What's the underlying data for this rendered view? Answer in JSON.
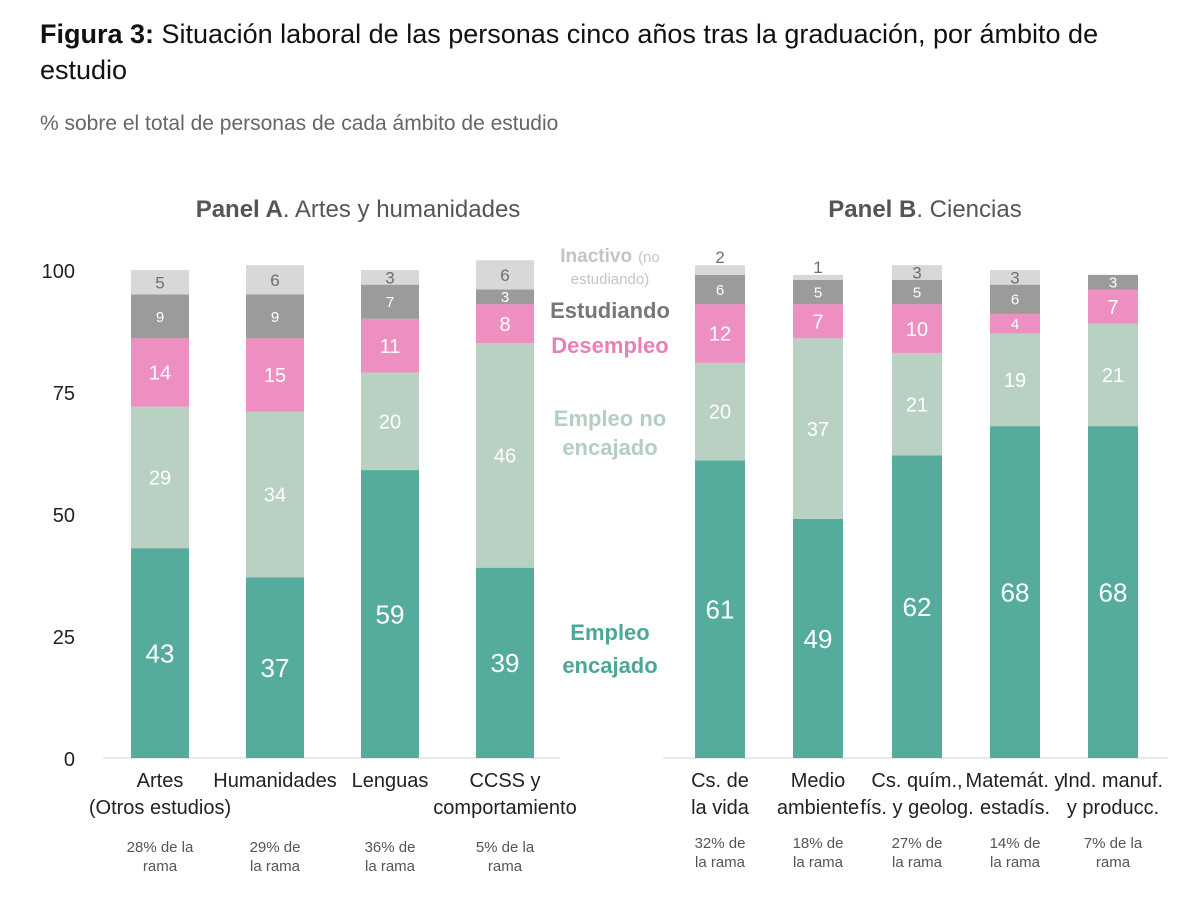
{
  "header": {
    "figure_label": "Figura 3:",
    "title": "Situación laboral de las personas cinco años tras la graduación, por ámbito de estudio",
    "subtitle": "% sobre el total de personas de cada ámbito de estudio"
  },
  "colors": {
    "empleo_encajado": "#55ab9c",
    "empleo_no_encajado": "#b9d1c2",
    "desempleo": "#ee8fc2",
    "estudiando": "#9b9b9b",
    "inactivo": "#d8d8d8",
    "legend_inactivo": "#c4c4c4",
    "legend_estudiando": "#777777",
    "legend_desempleo": "#ea7fb7",
    "legend_empleo_no_encajado": "#b3cfc0",
    "legend_empleo_encajado": "#4ea698"
  },
  "legend": {
    "inactivo_bold": "Inactivo",
    "inactivo_note_1": "(no",
    "inactivo_note_2": "estudiando)",
    "estudiando": "Estudiando",
    "desempleo": "Desempleo",
    "empleo_no_encajado_1": "Empleo no",
    "empleo_no_encajado_2": "encajado",
    "empleo_encajado_1": "Empleo",
    "empleo_encajado_2": "encajado"
  },
  "chart_data": [
    {
      "type": "bar",
      "stacked": true,
      "title_bold": "Panel A",
      "title_rest": ". Artes y humanidades",
      "ylim": [
        0,
        100
      ],
      "yticks": [
        0,
        25,
        50,
        75,
        100
      ],
      "categories": [
        {
          "label": [
            "Artes",
            "(Otros estudios)"
          ],
          "share": [
            "28% de la",
            "rama"
          ]
        },
        {
          "label": [
            "Humanidades"
          ],
          "share": [
            "29% de",
            "la rama"
          ]
        },
        {
          "label": [
            "Lenguas"
          ],
          "share": [
            "36% de",
            "la rama"
          ]
        },
        {
          "label": [
            "CCSS y",
            "comportamiento"
          ],
          "share": [
            "5% de la",
            "rama"
          ]
        }
      ],
      "series": [
        {
          "name": "Empleo encajado",
          "key": "empleo_encajado",
          "values": [
            43,
            37,
            59,
            39
          ]
        },
        {
          "name": "Empleo no encajado",
          "key": "empleo_no_encajado",
          "values": [
            29,
            34,
            20,
            46
          ]
        },
        {
          "name": "Desempleo",
          "key": "desempleo",
          "values": [
            14,
            15,
            11,
            8
          ]
        },
        {
          "name": "Estudiando",
          "key": "estudiando",
          "values": [
            9,
            9,
            7,
            3
          ]
        },
        {
          "name": "Inactivo (no estudiando)",
          "key": "inactivo",
          "values": [
            5,
            6,
            3,
            6
          ]
        }
      ]
    },
    {
      "type": "bar",
      "stacked": true,
      "title_bold": "Panel B",
      "title_rest": ". Ciencias",
      "ylim": [
        0,
        100
      ],
      "categories": [
        {
          "label": [
            "Cs. de",
            "la vida"
          ],
          "share": [
            "32% de",
            "la rama"
          ]
        },
        {
          "label": [
            "Medio",
            "ambiente"
          ],
          "share": [
            "18% de",
            "la rama"
          ]
        },
        {
          "label": [
            "Cs. quím.,",
            "fís. y geolog."
          ],
          "share": [
            "27% de",
            "la rama"
          ]
        },
        {
          "label": [
            "Matemát. y",
            "estadís."
          ],
          "share": [
            "14% de",
            "la rama"
          ]
        },
        {
          "label": [
            "Ind. manuf.",
            "y producc."
          ],
          "share": [
            "7% de la",
            "rama"
          ]
        }
      ],
      "series": [
        {
          "name": "Empleo encajado",
          "key": "empleo_encajado",
          "values": [
            61,
            49,
            62,
            68,
            68
          ]
        },
        {
          "name": "Empleo no encajado",
          "key": "empleo_no_encajado",
          "values": [
            20,
            37,
            21,
            19,
            21
          ]
        },
        {
          "name": "Desempleo",
          "key": "desempleo",
          "values": [
            12,
            7,
            10,
            4,
            7
          ]
        },
        {
          "name": "Estudiando",
          "key": "estudiando",
          "values": [
            6,
            5,
            5,
            6,
            3
          ]
        },
        {
          "name": "Inactivo (no estudiando)",
          "key": "inactivo",
          "values": [
            2,
            1,
            3,
            3,
            0
          ]
        }
      ]
    }
  ]
}
